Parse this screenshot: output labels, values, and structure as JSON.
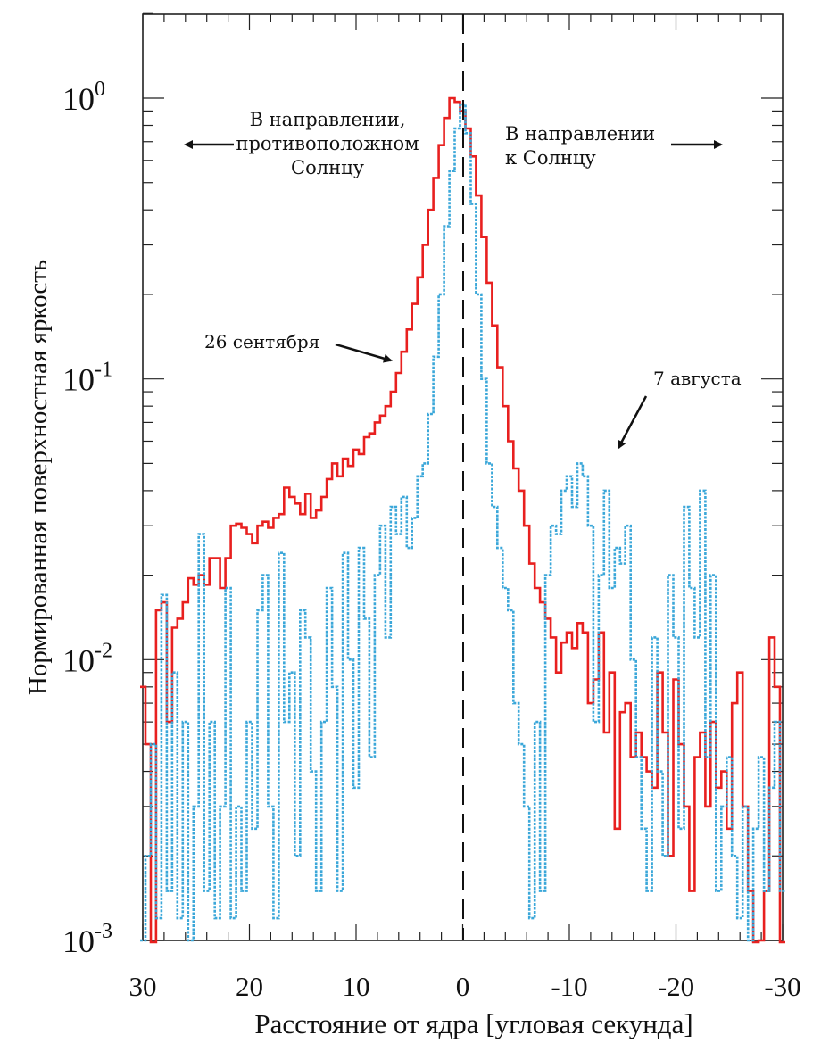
{
  "chart_data": {
    "type": "line",
    "ylabel": "Нормированная поверхностная яркость",
    "xlabel": "Расстояние от ядра [угловая секунда]",
    "xlim": [
      30,
      -30
    ],
    "ylim": [
      0.001,
      2
    ],
    "yscale": "log",
    "xticks": [
      {
        "value": 30,
        "label": "30"
      },
      {
        "value": 20,
        "label": "20"
      },
      {
        "value": 10,
        "label": "10"
      },
      {
        "value": 0,
        "label": "0"
      },
      {
        "value": -10,
        "label": "-10"
      },
      {
        "value": -20,
        "label": "-20"
      },
      {
        "value": -30,
        "label": "-30"
      }
    ],
    "yticks": [
      {
        "value": 1,
        "base": "10",
        "exp": "0"
      },
      {
        "value": 0.1,
        "base": "10",
        "exp": "-1"
      },
      {
        "value": 0.01,
        "base": "10",
        "exp": "-2"
      },
      {
        "value": 0.001,
        "base": "10",
        "exp": "-3"
      }
    ],
    "zero_line": {
      "x": 0,
      "style": "dashed"
    },
    "grid": false,
    "annotations": {
      "anti_sun": "В направлении,\nпротивоположном\nСолнцу",
      "sun": "В направлении\nк Солнцу",
      "sep": "26 сентября",
      "aug": "7 августа"
    },
    "series": [
      {
        "key": "sep26",
        "color": "#e8201f",
        "style": "solid",
        "x": [
          30,
          29.5,
          29,
          28.5,
          28,
          27.5,
          27,
          26.5,
          26,
          25.5,
          25,
          24.5,
          24,
          23.5,
          23,
          22.5,
          22,
          21.5,
          21,
          20.5,
          20,
          19.5,
          19,
          18.5,
          18,
          17.5,
          17,
          16.5,
          16,
          15.5,
          15,
          14.5,
          14,
          13.5,
          13,
          12.5,
          12,
          11.5,
          11,
          10.5,
          10,
          9.5,
          9,
          8.5,
          8,
          7.5,
          7,
          6.5,
          6,
          5.5,
          5,
          4.5,
          4,
          3.5,
          3,
          2.5,
          2,
          1.5,
          1,
          0.5,
          0,
          -0.5,
          -1,
          -1.5,
          -2,
          -2.5,
          -3,
          -3.5,
          -4,
          -4.5,
          -5,
          -5.5,
          -6,
          -6.5,
          -7,
          -7.5,
          -8,
          -8.5,
          -9,
          -9.5,
          -10,
          -10.5,
          -11,
          -11.5,
          -12,
          -12.5,
          -13,
          -13.5,
          -14,
          -14.5,
          -15,
          -15.5,
          -16,
          -16.5,
          -17,
          -17.5,
          -18,
          -18.5,
          -19,
          -19.5,
          -20,
          -20.5,
          -21,
          -21.5,
          -22,
          -22.5,
          -23,
          -23.5,
          -24,
          -24.5,
          -25,
          -25.5,
          -26,
          -26.5,
          -27,
          -27.5,
          -28,
          -28.5,
          -29,
          -29.5,
          -30
        ],
        "y": [
          0.008,
          0.005,
          0.0008,
          0.015,
          0.016,
          0.006,
          0.013,
          0.014,
          0.016,
          0.0195,
          0.0185,
          0.02,
          0.0185,
          0.023,
          0.023,
          0.018,
          0.023,
          0.03,
          0.0305,
          0.0295,
          0.028,
          0.026,
          0.03,
          0.031,
          0.0295,
          0.032,
          0.033,
          0.041,
          0.038,
          0.036,
          0.033,
          0.039,
          0.032,
          0.034,
          0.038,
          0.044,
          0.05,
          0.045,
          0.052,
          0.049,
          0.056,
          0.054,
          0.062,
          0.064,
          0.07,
          0.074,
          0.08,
          0.09,
          0.105,
          0.125,
          0.15,
          0.185,
          0.23,
          0.3,
          0.4,
          0.52,
          0.68,
          0.85,
          1.0,
          0.97,
          0.9,
          0.78,
          0.62,
          0.45,
          0.32,
          0.22,
          0.155,
          0.11,
          0.08,
          0.06,
          0.048,
          0.04,
          0.03,
          0.022,
          0.018,
          0.016,
          0.014,
          0.012,
          0.009,
          0.0115,
          0.0125,
          0.011,
          0.0135,
          0.0125,
          0.007,
          0.0085,
          0.0125,
          0.0055,
          0.009,
          0.0025,
          0.0065,
          0.007,
          0.0045,
          0.0055,
          0.0045,
          0.004,
          0.0035,
          0.009,
          0.0055,
          0.002,
          0.0085,
          0.005,
          0.003,
          0.0015,
          0.0045,
          0.0055,
          0.003,
          0.006,
          0.0035,
          0.004,
          0.0025,
          0.007,
          0.009,
          0.003,
          0.0015,
          0.0008,
          0.001,
          0.0015,
          0.012,
          0.008,
          0.0008
        ]
      },
      {
        "key": "aug7",
        "color": "#3ba7d9",
        "style": "dotted",
        "x": [
          30,
          29.5,
          29,
          28.5,
          28,
          27.5,
          27,
          26.5,
          26,
          25.5,
          25,
          24.5,
          24,
          23.5,
          23,
          22.5,
          22,
          21.5,
          21,
          20.5,
          20,
          19.5,
          19,
          18.5,
          18,
          17.5,
          17,
          16.5,
          16,
          15.5,
          15,
          14.5,
          14,
          13.5,
          13,
          12.5,
          12,
          11.5,
          11,
          10.5,
          10,
          9.5,
          9,
          8.5,
          8,
          7.5,
          7,
          6.5,
          6,
          5.5,
          5,
          4.5,
          4,
          3.5,
          3,
          2.5,
          2,
          1.5,
          1,
          0.5,
          0,
          -0.5,
          -1,
          -1.5,
          -2,
          -2.5,
          -3,
          -3.5,
          -4,
          -4.5,
          -5,
          -5.5,
          -6,
          -6.5,
          -7,
          -7.5,
          -8,
          -8.5,
          -9,
          -9.5,
          -10,
          -10.5,
          -11,
          -11.5,
          -12,
          -12.5,
          -13,
          -13.5,
          -14,
          -14.5,
          -15,
          -15.5,
          -16,
          -16.5,
          -17,
          -17.5,
          -18,
          -18.5,
          -19,
          -19.5,
          -20,
          -20.5,
          -21,
          -21.5,
          -22,
          -22.5,
          -23,
          -23.5,
          -24,
          -24.5,
          -25,
          -25.5,
          -26,
          -26.5,
          -27,
          -27.5,
          -28,
          -28.5,
          -29,
          -29.5,
          -30
        ],
        "y": [
          0.001,
          0.002,
          0.005,
          0.0012,
          0.017,
          0.0015,
          0.009,
          0.0012,
          0.006,
          0.001,
          0.003,
          0.028,
          0.0015,
          0.006,
          0.0012,
          0.003,
          0.018,
          0.0012,
          0.003,
          0.0015,
          0.006,
          0.0025,
          0.015,
          0.02,
          0.003,
          0.0012,
          0.024,
          0.006,
          0.009,
          0.002,
          0.015,
          0.012,
          0.004,
          0.0015,
          0.006,
          0.018,
          0.008,
          0.0015,
          0.024,
          0.01,
          0.0035,
          0.025,
          0.014,
          0.0045,
          0.02,
          0.03,
          0.012,
          0.035,
          0.028,
          0.038,
          0.025,
          0.032,
          0.045,
          0.05,
          0.075,
          0.12,
          0.2,
          0.35,
          0.55,
          0.78,
          0.95,
          0.75,
          0.42,
          0.2,
          0.1,
          0.05,
          0.035,
          0.025,
          0.018,
          0.015,
          0.007,
          0.005,
          0.003,
          0.0012,
          0.006,
          0.0015,
          0.02,
          0.03,
          0.028,
          0.04,
          0.045,
          0.035,
          0.05,
          0.045,
          0.03,
          0.006,
          0.02,
          0.04,
          0.018,
          0.025,
          0.022,
          0.03,
          0.01,
          0.0045,
          0.0025,
          0.0015,
          0.012,
          0.004,
          0.002,
          0.02,
          0.012,
          0.0025,
          0.035,
          0.018,
          0.012,
          0.04,
          0.0045,
          0.02,
          0.0015,
          0.003,
          0.0045,
          0.002,
          0.0012,
          0.003,
          0.001,
          0.0025,
          0.0045,
          0.0015,
          0.0035,
          0.006,
          0.0015
        ]
      }
    ]
  }
}
